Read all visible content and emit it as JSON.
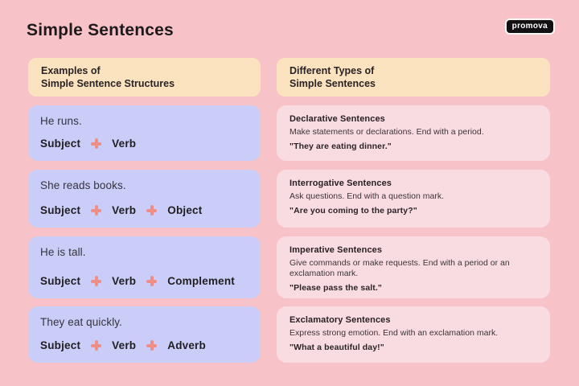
{
  "page": {
    "title": "Simple Sentences",
    "brand": "promova"
  },
  "colors": {
    "background": "#f7c2c8",
    "header_box": "#fce3c0",
    "example_box": "#c9cdf7",
    "type_box": "#f9dce2",
    "plus_icon": "#ee8e87",
    "logo_bg": "#121012",
    "logo_text": "#ffffff",
    "text_dark": "#1e1a1b"
  },
  "left": {
    "header_line1": "Examples of",
    "header_line2": "Simple Sentence Structures",
    "examples": [
      {
        "sentence": "He runs.",
        "parts": [
          "Subject",
          "Verb"
        ]
      },
      {
        "sentence": "She reads books.",
        "parts": [
          "Subject",
          "Verb",
          "Object"
        ]
      },
      {
        "sentence": "He is tall.",
        "parts": [
          "Subject",
          "Verb",
          "Complement"
        ]
      },
      {
        "sentence": "They eat quickly.",
        "parts": [
          "Subject",
          "Verb",
          "Adverb"
        ]
      }
    ]
  },
  "right": {
    "header_line1": "Different Types of",
    "header_line2": "Simple Sentences",
    "types": [
      {
        "title": "Declarative Sentences",
        "description": "Make statements or declarations. End with a period.",
        "example": "\"They are eating dinner.\""
      },
      {
        "title": "Interrogative Sentences",
        "description": "Ask questions. End with a question mark.",
        "example": "\"Are you coming to the party?\""
      },
      {
        "title": "Imperative Sentences",
        "description": "Give commands or make requests. End with a period or an exclamation mark.",
        "example": "\"Please pass the salt.\""
      },
      {
        "title": "Exclamatory Sentences",
        "description": "Express strong emotion. End with an exclamation mark.",
        "example": "\"What a beautiful day!\""
      }
    ]
  }
}
